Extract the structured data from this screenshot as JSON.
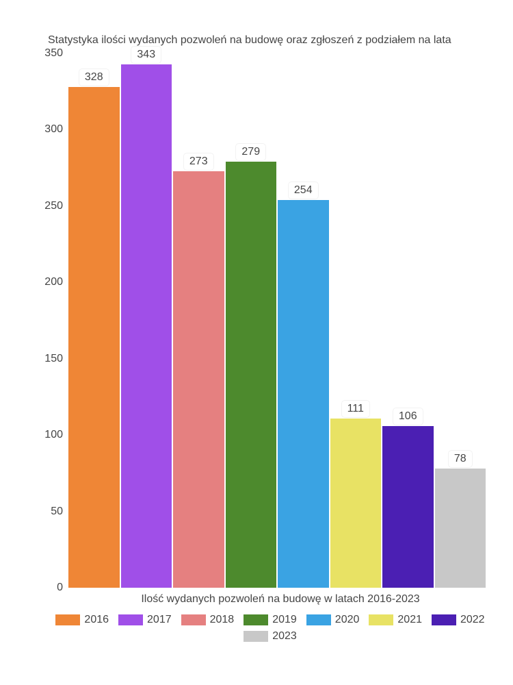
{
  "chart": {
    "type": "bar",
    "title": "Statystyka ilości wydanych pozwoleń na budowę oraz zgłoszeń z podziałem na lata",
    "xlabel": "Ilość wydanych pozwoleń na budowę w latach 2016-2023",
    "ylim": [
      0,
      350
    ],
    "ytick_step": 50,
    "yticks": [
      0,
      50,
      100,
      150,
      200,
      250,
      300,
      350
    ],
    "background_color": "#ffffff",
    "text_color": "#444444",
    "title_fontsize": 16,
    "label_fontsize": 16,
    "tick_fontsize": 16,
    "categories": [
      "2016",
      "2017",
      "2018",
      "2019",
      "2020",
      "2021",
      "2022",
      "2023"
    ],
    "values": [
      328,
      343,
      273,
      279,
      254,
      111,
      106,
      78
    ],
    "bar_colors": [
      "#ef8636",
      "#a04fe8",
      "#e58080",
      "#4d8a2d",
      "#3aa3e3",
      "#e8e264",
      "#4b1fb3",
      "#c8c8c8"
    ],
    "bar_label_bg": "#ffffff",
    "bar_gap": 2
  }
}
